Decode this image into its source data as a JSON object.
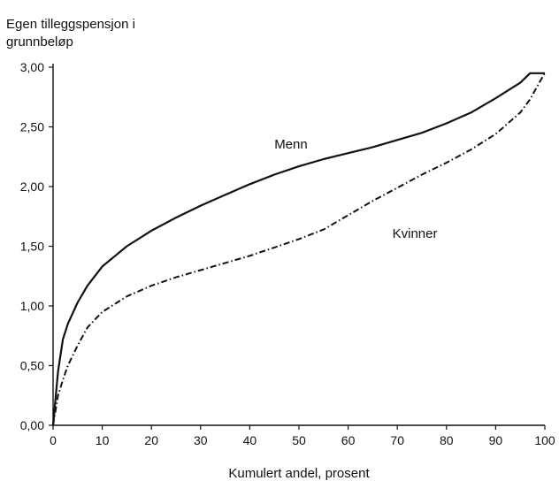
{
  "chart_data": {
    "type": "line",
    "ylabel_lines": [
      "Egen tilleggspensjon i",
      "grunnbeløp"
    ],
    "xlabel": "Kumulert andel, prosent",
    "xlim": [
      0,
      100
    ],
    "ylim": [
      0,
      3.0
    ],
    "xticks": [
      "0",
      "10",
      "20",
      "30",
      "40",
      "50",
      "60",
      "70",
      "80",
      "90",
      "100"
    ],
    "xtick_values": [
      0,
      10,
      20,
      30,
      40,
      50,
      60,
      70,
      80,
      90,
      100
    ],
    "yticks": [
      "0,00",
      "0,50",
      "1,00",
      "1,50",
      "2,00",
      "2,50",
      "3,00"
    ],
    "ytick_values": [
      0,
      0.5,
      1.0,
      1.5,
      2.0,
      2.5,
      3.0
    ],
    "grid": false,
    "series": [
      {
        "name": "Menn",
        "line_style": "solid",
        "color": "#111111",
        "x": [
          0,
          1,
          2,
          3,
          5,
          7,
          10,
          15,
          20,
          25,
          30,
          35,
          40,
          45,
          50,
          55,
          60,
          65,
          70,
          75,
          80,
          85,
          90,
          95,
          97,
          99,
          100
        ],
        "y": [
          0,
          0.45,
          0.72,
          0.85,
          1.03,
          1.17,
          1.33,
          1.5,
          1.63,
          1.74,
          1.84,
          1.93,
          2.02,
          2.1,
          2.17,
          2.23,
          2.28,
          2.33,
          2.39,
          2.45,
          2.53,
          2.62,
          2.74,
          2.87,
          2.95,
          2.95,
          2.95
        ]
      },
      {
        "name": "Kvinner",
        "line_style": "dash-dot",
        "color": "#111111",
        "x": [
          0,
          1,
          2,
          3,
          5,
          7,
          10,
          15,
          20,
          25,
          30,
          35,
          40,
          45,
          50,
          55,
          60,
          65,
          70,
          75,
          80,
          85,
          90,
          95,
          97,
          99,
          100
        ],
        "y": [
          0,
          0.25,
          0.38,
          0.5,
          0.67,
          0.82,
          0.95,
          1.08,
          1.17,
          1.24,
          1.3,
          1.36,
          1.42,
          1.49,
          1.56,
          1.64,
          1.76,
          1.88,
          1.99,
          2.1,
          2.2,
          2.31,
          2.44,
          2.62,
          2.73,
          2.88,
          2.95
        ]
      }
    ],
    "annotations": [
      {
        "text": "Menn",
        "x": 45,
        "y": 2.32
      },
      {
        "text": "Kvinner",
        "x": 69,
        "y": 1.57
      }
    ]
  }
}
